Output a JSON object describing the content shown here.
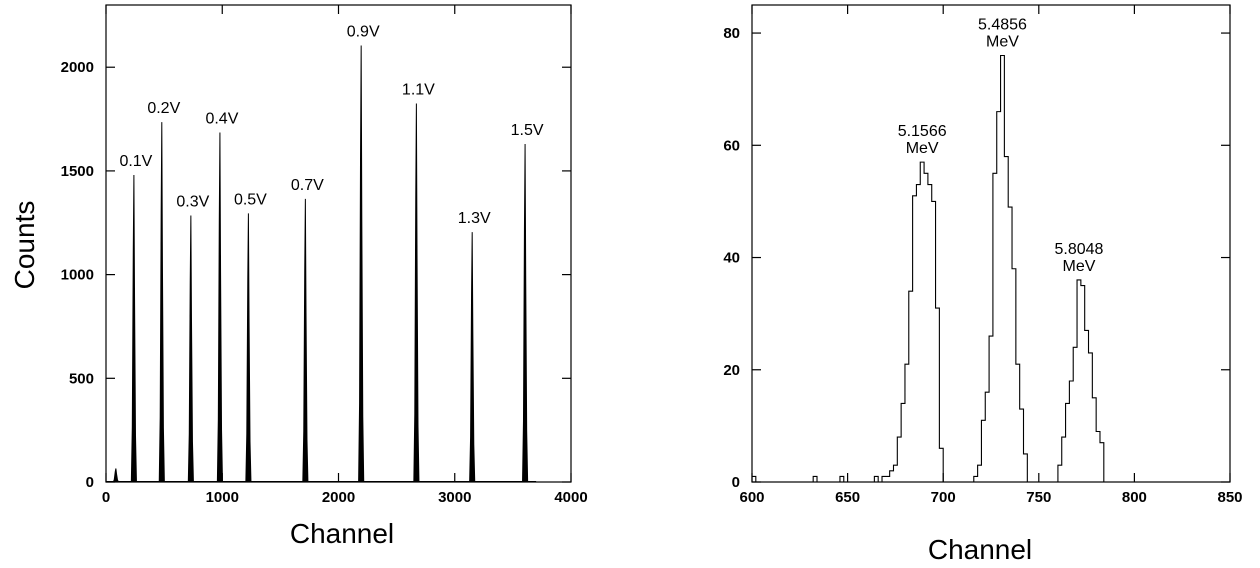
{
  "chart_data": [
    {
      "type": "line",
      "title": "",
      "xlabel": "Channel",
      "ylabel": "Counts",
      "xlim": [
        0,
        4000
      ],
      "ylim": [
        0,
        2300
      ],
      "xticks": [
        0,
        1000,
        2000,
        3000,
        4000
      ],
      "yticks": [
        0,
        500,
        1000,
        1500,
        2000
      ],
      "xtick_labels": [
        "0",
        "1000",
        "2000",
        "3000",
        "4000"
      ],
      "ytick_labels": [
        "0",
        "500",
        "1000",
        "1500",
        "2000"
      ],
      "grid": false,
      "peaks": [
        {
          "label": "0.1V",
          "channel": 240,
          "counts": 1480
        },
        {
          "label": "0.2V",
          "channel": 480,
          "counts": 1735
        },
        {
          "label": "0.3V",
          "channel": 730,
          "counts": 1285
        },
        {
          "label": "0.4V",
          "channel": 980,
          "counts": 1685
        },
        {
          "label": "0.5V",
          "channel": 1225,
          "counts": 1295
        },
        {
          "label": "0.7V",
          "channel": 1715,
          "counts": 1365
        },
        {
          "label": "0.9V",
          "channel": 2195,
          "counts": 2105
        },
        {
          "label": "1.1V",
          "channel": 2670,
          "counts": 1825
        },
        {
          "label": "1.3V",
          "channel": 3150,
          "counts": 1205
        },
        {
          "label": "1.5V",
          "channel": 3605,
          "counts": 1630
        }
      ],
      "small_peaks": [
        {
          "channel": 85,
          "counts": 65
        }
      ]
    },
    {
      "type": "histogram",
      "title": "",
      "xlabel": "Channel",
      "ylabel": "",
      "xlim": [
        600,
        850
      ],
      "ylim": [
        0,
        85
      ],
      "xticks": [
        600,
        650,
        700,
        750,
        800,
        850
      ],
      "yticks": [
        0,
        20,
        40,
        60,
        80
      ],
      "xtick_labels": [
        "600",
        "650",
        "700",
        "750",
        "800",
        "850"
      ],
      "ytick_labels": [
        "0",
        "20",
        "40",
        "60",
        "80"
      ],
      "grid": false,
      "bin_width": 2,
      "bins": [
        [
          600,
          1
        ],
        [
          632,
          1
        ],
        [
          646,
          1
        ],
        [
          664,
          1
        ],
        [
          668,
          1
        ],
        [
          670,
          1
        ],
        [
          672,
          2
        ],
        [
          674,
          3
        ],
        [
          676,
          8
        ],
        [
          678,
          14
        ],
        [
          680,
          21
        ],
        [
          682,
          34
        ],
        [
          684,
          51
        ],
        [
          686,
          53
        ],
        [
          688,
          57
        ],
        [
          690,
          55
        ],
        [
          692,
          53
        ],
        [
          694,
          50
        ],
        [
          696,
          31
        ],
        [
          698,
          6
        ],
        [
          716,
          1
        ],
        [
          718,
          3
        ],
        [
          720,
          11
        ],
        [
          722,
          16
        ],
        [
          724,
          26
        ],
        [
          726,
          55
        ],
        [
          728,
          66
        ],
        [
          730,
          76
        ],
        [
          732,
          58
        ],
        [
          734,
          49
        ],
        [
          736,
          38
        ],
        [
          738,
          21
        ],
        [
          740,
          13
        ],
        [
          742,
          5
        ],
        [
          760,
          3
        ],
        [
          762,
          8
        ],
        [
          764,
          14
        ],
        [
          766,
          18
        ],
        [
          768,
          24
        ],
        [
          770,
          36
        ],
        [
          772,
          35
        ],
        [
          774,
          27
        ],
        [
          776,
          23
        ],
        [
          778,
          15
        ],
        [
          780,
          9
        ],
        [
          782,
          7
        ]
      ],
      "annotations": [
        {
          "line1": "5.1566",
          "line2": "MeV",
          "channel": 689,
          "counts": 57
        },
        {
          "line1": "5.4856",
          "line2": "MeV",
          "channel": 731,
          "counts": 76
        },
        {
          "line1": "5.8048",
          "line2": "MeV",
          "channel": 771,
          "counts": 36
        }
      ]
    }
  ]
}
